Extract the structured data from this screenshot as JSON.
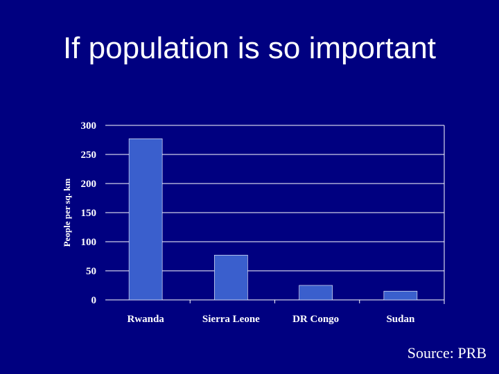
{
  "slide": {
    "title": "If population is so important",
    "source": "Source: PRB"
  },
  "colors": {
    "background": "#000080",
    "bar": "#3a5fcd",
    "text": "#ffffff",
    "grid": "#ffffff"
  },
  "chart_data": {
    "type": "bar",
    "title": "",
    "xlabel": "",
    "ylabel": "People per sq. km",
    "categories": [
      "Rwanda",
      "Sierra Leone",
      "DR Congo",
      "Sudan"
    ],
    "values": [
      277,
      77,
      25,
      15
    ],
    "ylim": [
      0,
      300
    ],
    "yticks": [
      0,
      50,
      100,
      150,
      200,
      250,
      300
    ],
    "grid": true,
    "legend": "none"
  }
}
